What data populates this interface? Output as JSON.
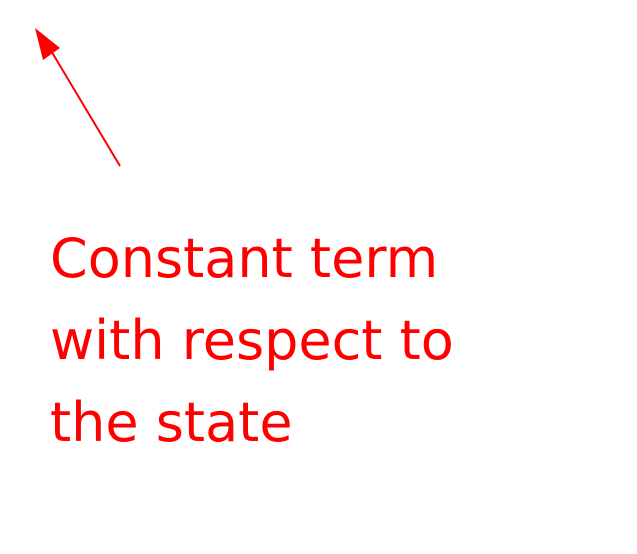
{
  "annotation": {
    "lines": [
      "Constant term",
      "with respect to",
      "the state"
    ],
    "color": "#ff0000"
  },
  "arrow": {
    "color": "#ff0000"
  }
}
